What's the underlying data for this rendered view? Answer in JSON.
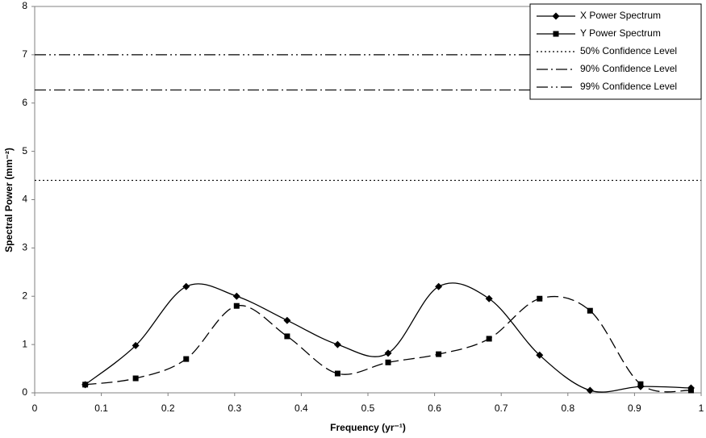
{
  "chart_data": {
    "type": "line",
    "xlabel": "Frequency (yr⁻¹)",
    "ylabel": "Spectral Power (mm⁻²)",
    "x": [
      0.0758,
      0.1515,
      0.2273,
      0.303,
      0.3788,
      0.4545,
      0.5303,
      0.6061,
      0.6818,
      0.7576,
      0.8333,
      0.9091,
      0.9848
    ],
    "series": [
      {
        "name": "X Power Spectrum",
        "color": "#000000",
        "marker": "diamond",
        "dash": "none",
        "values": [
          0.17,
          0.98,
          2.2,
          2.0,
          1.5,
          1.0,
          0.82,
          2.2,
          1.95,
          0.78,
          0.05,
          0.13,
          0.1
        ]
      },
      {
        "name": "Y Power Spectrum",
        "color": "#000000",
        "marker": "square",
        "dash": "14 6",
        "values": [
          0.17,
          0.3,
          0.7,
          1.8,
          1.17,
          0.4,
          0.63,
          0.8,
          1.12,
          1.95,
          1.7,
          0.18,
          0.05
        ]
      }
    ],
    "reference_lines": [
      {
        "name": "50% Confidence Level",
        "value": 4.4,
        "dash": "2 3"
      },
      {
        "name": "90% Confidence Level",
        "value": 6.27,
        "dash": "14 4 2 4"
      },
      {
        "name": "99% Confidence Level",
        "value": 7.0,
        "dash": "14 4 2 4 2 4"
      }
    ],
    "xlim": [
      0,
      1
    ],
    "xticks": [
      0,
      0.1,
      0.2,
      0.3,
      0.4,
      0.5,
      0.6,
      0.7,
      0.8,
      0.9,
      1
    ],
    "ylim": [
      0,
      8
    ],
    "yticks": [
      0,
      1,
      2,
      3,
      4,
      5,
      6,
      7,
      8
    ],
    "smooth": true,
    "legend": "top-right"
  }
}
